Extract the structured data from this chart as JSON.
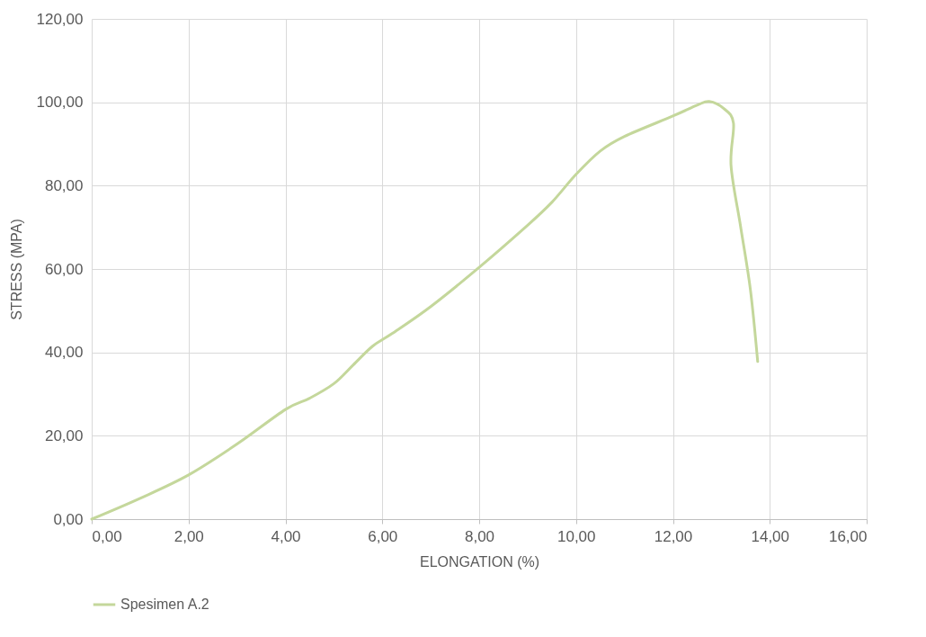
{
  "chart_data": {
    "type": "line",
    "xlabel": "ELONGATION (%)",
    "ylabel": "STRESS (MPA)",
    "series": [
      {
        "name": "Spesimen A.2",
        "color": "#c4d79b",
        "x": [
          0,
          1,
          2,
          3,
          4,
          4.5,
          5,
          5.4,
          5.8,
          6.2,
          7,
          8,
          9,
          9.5,
          10,
          10.5,
          11,
          12,
          12.5,
          12.75,
          13.05,
          13.25,
          13.2,
          13.4,
          13.6,
          13.75
        ],
        "values": [
          0,
          5,
          10.6,
          18,
          26.3,
          29,
          32.5,
          37,
          41.5,
          44.5,
          51,
          60.4,
          70.5,
          76,
          82.7,
          88.3,
          91.8,
          96.7,
          99.3,
          100.2,
          98.5,
          95,
          84.8,
          70,
          55,
          37.8
        ]
      }
    ],
    "xlim": [
      0,
      16
    ],
    "xticks": [
      {
        "value": 0,
        "label": "0,00"
      },
      {
        "value": 2,
        "label": "2,00"
      },
      {
        "value": 4,
        "label": "4,00"
      },
      {
        "value": 6,
        "label": "6,00"
      },
      {
        "value": 8,
        "label": "8,00"
      },
      {
        "value": 10,
        "label": "10,00"
      },
      {
        "value": 12,
        "label": "12,00"
      },
      {
        "value": 14,
        "label": "14,00"
      },
      {
        "value": 16,
        "label": "16,00"
      }
    ],
    "ylim": [
      0,
      120
    ],
    "yticks": [
      {
        "value": 0,
        "label": "0,00"
      },
      {
        "value": 20,
        "label": "20,00"
      },
      {
        "value": 40,
        "label": "40,00"
      },
      {
        "value": 60,
        "label": "60,00"
      },
      {
        "value": 80,
        "label": "80,00"
      },
      {
        "value": 100,
        "label": "100,00"
      },
      {
        "value": 120,
        "label": "120,00"
      }
    ],
    "grid": true,
    "legend": "bottom",
    "marker": "none",
    "line_style": "solid"
  }
}
